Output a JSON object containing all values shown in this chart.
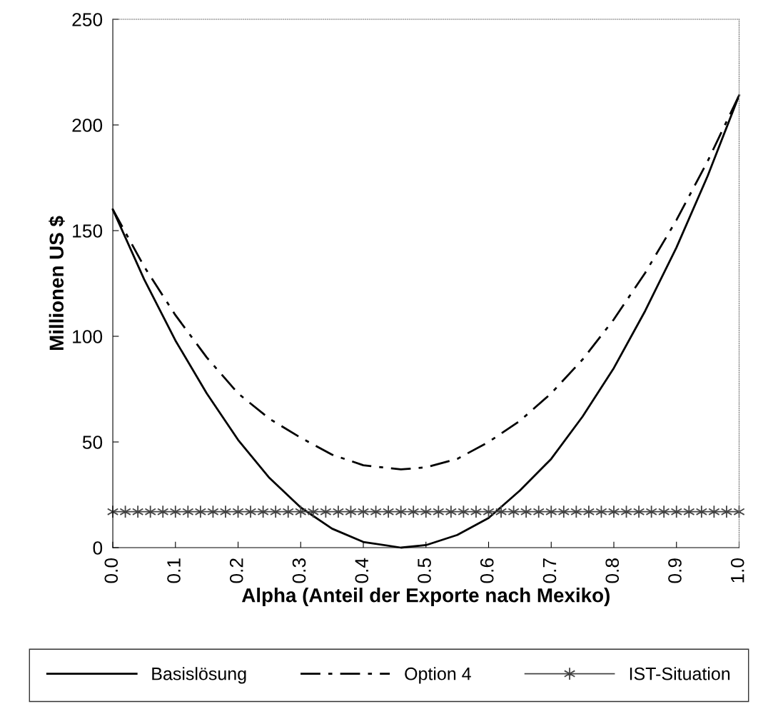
{
  "chart_data": {
    "type": "line",
    "xlabel": "Alpha (Anteil der Exporte nach Mexiko)",
    "ylabel": "Millionen US $",
    "xlim": [
      0,
      1
    ],
    "ylim": [
      0,
      250
    ],
    "xticks": [
      {
        "value": 0,
        "label": "0.0"
      },
      {
        "value": 0.1,
        "label": "0.1"
      },
      {
        "value": 0.2,
        "label": "0.2"
      },
      {
        "value": 0.3,
        "label": "0.3"
      },
      {
        "value": 0.4,
        "label": "0.4"
      },
      {
        "value": 0.5,
        "label": "0.5"
      },
      {
        "value": 0.6,
        "label": "0.6"
      },
      {
        "value": 0.7,
        "label": "0.7"
      },
      {
        "value": 0.8,
        "label": "0.8"
      },
      {
        "value": 0.9,
        "label": "0.9"
      },
      {
        "value": 1,
        "label": "1.0"
      }
    ],
    "yticks": [
      0,
      50,
      100,
      150,
      200,
      250
    ],
    "grid": false,
    "legend": "bottom",
    "series": [
      {
        "name": "Basislösung",
        "color": "#000000",
        "line_style": "solid",
        "marker": "none",
        "x": [
          0,
          0.05,
          0.1,
          0.15,
          0.2,
          0.25,
          0.3,
          0.35,
          0.4,
          0.46,
          0.5,
          0.55,
          0.6,
          0.65,
          0.7,
          0.75,
          0.8,
          0.85,
          0.9,
          0.95,
          1
        ],
        "values": [
          160,
          127,
          98,
          73,
          51,
          33,
          19,
          9,
          2.7,
          0,
          1.2,
          6,
          14,
          27,
          42,
          62,
          85,
          112,
          142,
          176,
          214
        ]
      },
      {
        "name": "Option 4",
        "color": "#000000",
        "line_style": "dashdot",
        "marker": "none",
        "x": [
          0,
          0.05,
          0.1,
          0.15,
          0.2,
          0.25,
          0.3,
          0.35,
          0.4,
          0.46,
          0.5,
          0.55,
          0.6,
          0.65,
          0.7,
          0.75,
          0.8,
          0.85,
          0.9,
          0.95,
          1
        ],
        "values": [
          160,
          133,
          110,
          90,
          73,
          61,
          52,
          44,
          39,
          37,
          38,
          42,
          50,
          60,
          73,
          89,
          108,
          130,
          155,
          183,
          214
        ]
      },
      {
        "name": "IST-Situation",
        "color": "#444444",
        "line_style": "solid",
        "marker": "cross",
        "x": [
          0,
          0.02,
          0.04,
          0.06,
          0.08,
          0.1,
          0.12,
          0.14,
          0.16,
          0.18,
          0.2,
          0.22,
          0.24,
          0.26,
          0.28,
          0.3,
          0.32,
          0.34,
          0.36,
          0.38,
          0.4,
          0.42,
          0.44,
          0.46,
          0.48,
          0.5,
          0.52,
          0.54,
          0.56,
          0.58,
          0.6,
          0.62,
          0.64,
          0.66,
          0.68,
          0.7,
          0.72,
          0.74,
          0.76,
          0.78,
          0.8,
          0.82,
          0.84,
          0.86,
          0.88,
          0.9,
          0.92,
          0.94,
          0.96,
          0.98,
          1
        ],
        "values": [
          17,
          17,
          17,
          17,
          17,
          17,
          17,
          17,
          17,
          17,
          17,
          17,
          17,
          17,
          17,
          17,
          17,
          17,
          17,
          17,
          17,
          17,
          17,
          17,
          17,
          17,
          17,
          17,
          17,
          17,
          17,
          17,
          17,
          17,
          17,
          17,
          17,
          17,
          17,
          17,
          17,
          17,
          17,
          17,
          17,
          17,
          17,
          17,
          17,
          17,
          17
        ]
      }
    ]
  }
}
